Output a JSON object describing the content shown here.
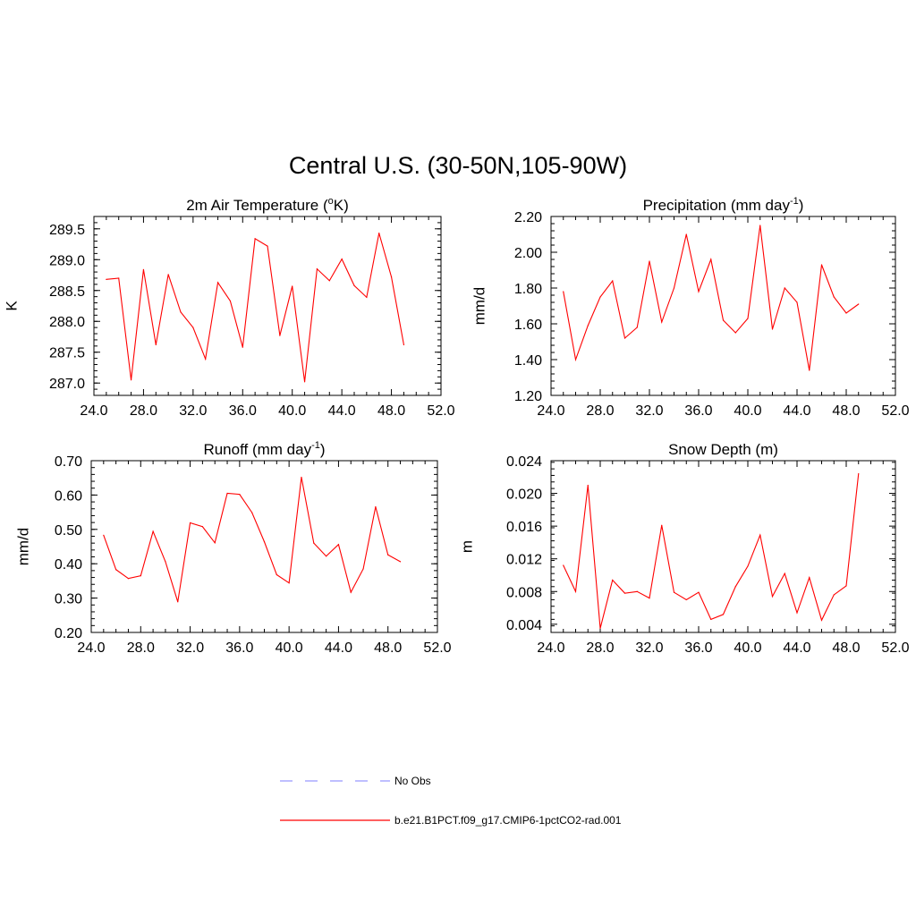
{
  "title": "Central U.S. (30-50N,105-90W)",
  "legend": {
    "obs_label": "No Obs",
    "obs_color": "#9999ff",
    "model_label": "b.e21.B1PCT.f09_g17.CMIP6-1pctCO2-rad.001",
    "model_color": "#ff0000"
  },
  "chart_data": [
    {
      "type": "line",
      "title": "2m Air Temperature (°K)",
      "title_main": "2m Air Temperature (",
      "title_sup": "o",
      "title_end": "K)",
      "xlabel": "",
      "ylabel": "K",
      "xlim": [
        24,
        52
      ],
      "ylim": [
        286.8,
        289.7
      ],
      "xticks": [
        "24.0",
        "28.0",
        "32.0",
        "36.0",
        "40.0",
        "44.0",
        "48.0",
        "52.0"
      ],
      "yticks": [
        "287.0",
        "287.5",
        "288.0",
        "288.5",
        "289.0",
        "289.5"
      ],
      "series": [
        {
          "x": [
            25,
            26,
            27,
            28,
            29,
            30,
            31,
            32,
            33,
            34,
            35,
            36,
            37,
            38,
            39,
            40,
            41,
            42,
            43,
            44,
            45,
            46,
            47,
            48,
            49
          ],
          "values": [
            288.68,
            288.7,
            287.05,
            288.84,
            287.62,
            288.76,
            288.15,
            287.9,
            287.39,
            288.63,
            288.33,
            287.58,
            289.34,
            289.22,
            287.77,
            288.57,
            287.02,
            288.85,
            288.66,
            289.01,
            288.58,
            288.39,
            289.43,
            288.72,
            287.62
          ]
        }
      ]
    },
    {
      "type": "line",
      "title": "Precipitation (mm day-1)",
      "title_main": "Precipitation (mm day",
      "title_sup": "-1",
      "title_end": ")",
      "xlabel": "",
      "ylabel": "mm/d",
      "xlim": [
        24,
        52
      ],
      "ylim": [
        1.2,
        2.2
      ],
      "xticks": [
        "24.0",
        "28.0",
        "32.0",
        "36.0",
        "40.0",
        "44.0",
        "48.0",
        "52.0"
      ],
      "yticks": [
        "1.20",
        "1.40",
        "1.60",
        "1.80",
        "2.00",
        "2.20"
      ],
      "series": [
        {
          "x": [
            25,
            26,
            27,
            28,
            29,
            30,
            31,
            32,
            33,
            34,
            35,
            36,
            37,
            38,
            39,
            40,
            41,
            42,
            43,
            44,
            45,
            46,
            47,
            48,
            49
          ],
          "values": [
            1.78,
            1.4,
            1.59,
            1.75,
            1.84,
            1.52,
            1.58,
            1.95,
            1.61,
            1.8,
            2.1,
            1.78,
            1.96,
            1.62,
            1.55,
            1.63,
            2.15,
            1.57,
            1.8,
            1.72,
            1.34,
            1.93,
            1.75,
            1.66,
            1.71
          ]
        }
      ]
    },
    {
      "type": "line",
      "title": "Runoff (mm day-1)",
      "title_main": "Runoff (mm day",
      "title_sup": "-1",
      "title_end": ")",
      "xlabel": "",
      "ylabel": "mm/d",
      "xlim": [
        24,
        52
      ],
      "ylim": [
        0.2,
        0.7
      ],
      "xticks": [
        "24.0",
        "28.0",
        "32.0",
        "36.0",
        "40.0",
        "44.0",
        "48.0",
        "52.0"
      ],
      "yticks": [
        "0.20",
        "0.30",
        "0.40",
        "0.50",
        "0.60",
        "0.70"
      ],
      "series": [
        {
          "x": [
            25,
            26,
            27,
            28,
            29,
            30,
            31,
            32,
            33,
            34,
            35,
            36,
            37,
            38,
            39,
            40,
            41,
            42,
            43,
            44,
            45,
            46,
            47,
            48,
            49
          ],
          "values": [
            0.483,
            0.383,
            0.357,
            0.365,
            0.494,
            0.406,
            0.289,
            0.519,
            0.508,
            0.461,
            0.605,
            0.602,
            0.549,
            0.464,
            0.368,
            0.344,
            0.652,
            0.46,
            0.422,
            0.456,
            0.317,
            0.385,
            0.566,
            0.426,
            0.406
          ]
        }
      ]
    },
    {
      "type": "line",
      "title": "Snow Depth (m)",
      "title_main": "Snow Depth (m)",
      "title_sup": "",
      "title_end": "",
      "xlabel": "",
      "ylabel": "m",
      "xlim": [
        24,
        52
      ],
      "ylim": [
        0.003,
        0.024
      ],
      "xticks": [
        "24.0",
        "28.0",
        "32.0",
        "36.0",
        "40.0",
        "44.0",
        "48.0",
        "52.0"
      ],
      "yticks": [
        "0.004",
        "0.008",
        "0.012",
        "0.016",
        "0.020",
        "0.024"
      ],
      "series": [
        {
          "x": [
            25,
            26,
            27,
            28,
            29,
            30,
            31,
            32,
            33,
            34,
            35,
            36,
            37,
            38,
            39,
            40,
            41,
            42,
            43,
            44,
            45,
            46,
            47,
            48,
            49
          ],
          "values": [
            0.0112,
            0.008,
            0.021,
            0.0035,
            0.0094,
            0.0078,
            0.008,
            0.0072,
            0.0161,
            0.0079,
            0.007,
            0.0079,
            0.0046,
            0.0052,
            0.0086,
            0.0111,
            0.0149,
            0.0074,
            0.0102,
            0.0054,
            0.0097,
            0.0045,
            0.0076,
            0.0087,
            0.0224
          ]
        }
      ]
    }
  ]
}
